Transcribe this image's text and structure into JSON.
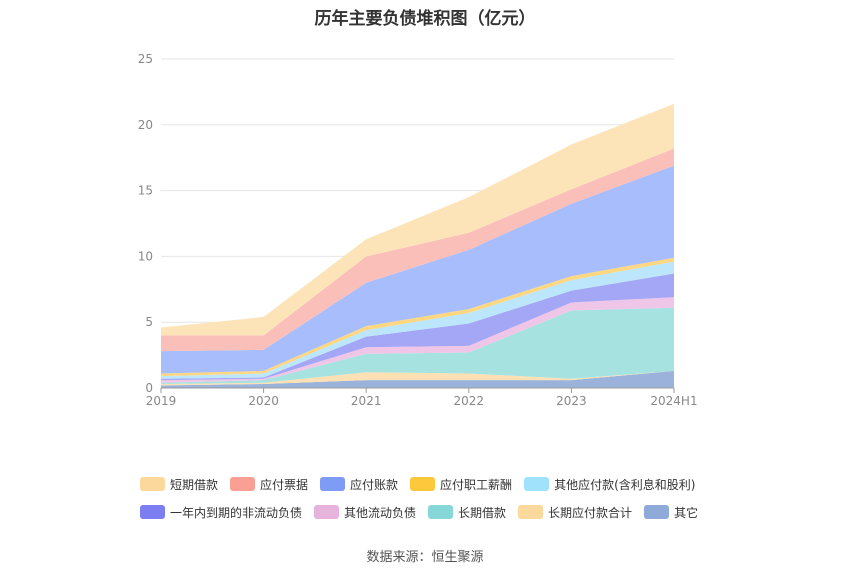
{
  "chart_data": {
    "type": "area",
    "title": "历年主要负债堆积图（亿元）",
    "x": [
      "2019",
      "2020",
      "2021",
      "2022",
      "2023",
      "2024H1"
    ],
    "ylim": [
      0,
      25
    ],
    "yticks": [
      0,
      5,
      10,
      15,
      20,
      25
    ],
    "grid": true,
    "legend_position": "bottom",
    "stacked": true,
    "series": [
      {
        "name": "其它",
        "color": "#9bb3db",
        "values": [
          0.2,
          0.3,
          0.6,
          0.6,
          0.6,
          1.3
        ]
      },
      {
        "name": "长期应付款合计",
        "color": "#fde0b3",
        "values": [
          0.1,
          0.1,
          0.6,
          0.5,
          0.1,
          0.0
        ]
      },
      {
        "name": "长期借款",
        "color": "#a6e3e0",
        "values": [
          0.1,
          0.2,
          1.4,
          1.6,
          5.2,
          4.8
        ]
      },
      {
        "name": "其他流动负债",
        "color": "#efc6e7",
        "values": [
          0.2,
          0.1,
          0.5,
          0.5,
          0.6,
          0.8
        ]
      },
      {
        "name": "一年内到期的非流动负债",
        "color": "#a3a7f5",
        "values": [
          0.1,
          0.1,
          0.8,
          1.7,
          0.9,
          1.8
        ]
      },
      {
        "name": "其他应付款(含利息和股利)",
        "color": "#bce6fb",
        "values": [
          0.2,
          0.3,
          0.5,
          0.8,
          0.8,
          0.9
        ]
      },
      {
        "name": "应付职工薪酬",
        "color": "#fed782",
        "values": [
          0.2,
          0.2,
          0.3,
          0.3,
          0.3,
          0.3
        ]
      },
      {
        "name": "应付账款",
        "color": "#a8bdfb",
        "values": [
          1.7,
          1.6,
          3.3,
          4.5,
          5.5,
          7.0
        ]
      },
      {
        "name": "应付票据",
        "color": "#fbbfba",
        "values": [
          1.2,
          1.1,
          2.0,
          1.3,
          1.1,
          1.3
        ]
      },
      {
        "name": "短期借款",
        "color": "#fde4b8",
        "values": [
          0.6,
          1.4,
          1.3,
          2.7,
          3.4,
          3.4
        ]
      }
    ]
  },
  "legend": {
    "row1": [
      {
        "label": "短期借款",
        "color": "#fcd89c"
      },
      {
        "label": "应付票据",
        "color": "#fa9f94"
      },
      {
        "label": "应付账款",
        "color": "#7e9cf6"
      },
      {
        "label": "应付职工薪酬",
        "color": "#fec83c"
      },
      {
        "label": "其他应付款(含利息和股利)",
        "color": "#a0e2fb"
      }
    ],
    "row2": [
      {
        "label": "一年内到期的非流动负债",
        "color": "#7b7ef0"
      },
      {
        "label": "其他流动负债",
        "color": "#e6b3dd"
      },
      {
        "label": "长期借款",
        "color": "#86d8d8"
      },
      {
        "label": "长期应付款合计",
        "color": "#fcd89c"
      },
      {
        "label": "其它",
        "color": "#8eaad8"
      }
    ]
  },
  "source": "数据来源：恒生聚源"
}
